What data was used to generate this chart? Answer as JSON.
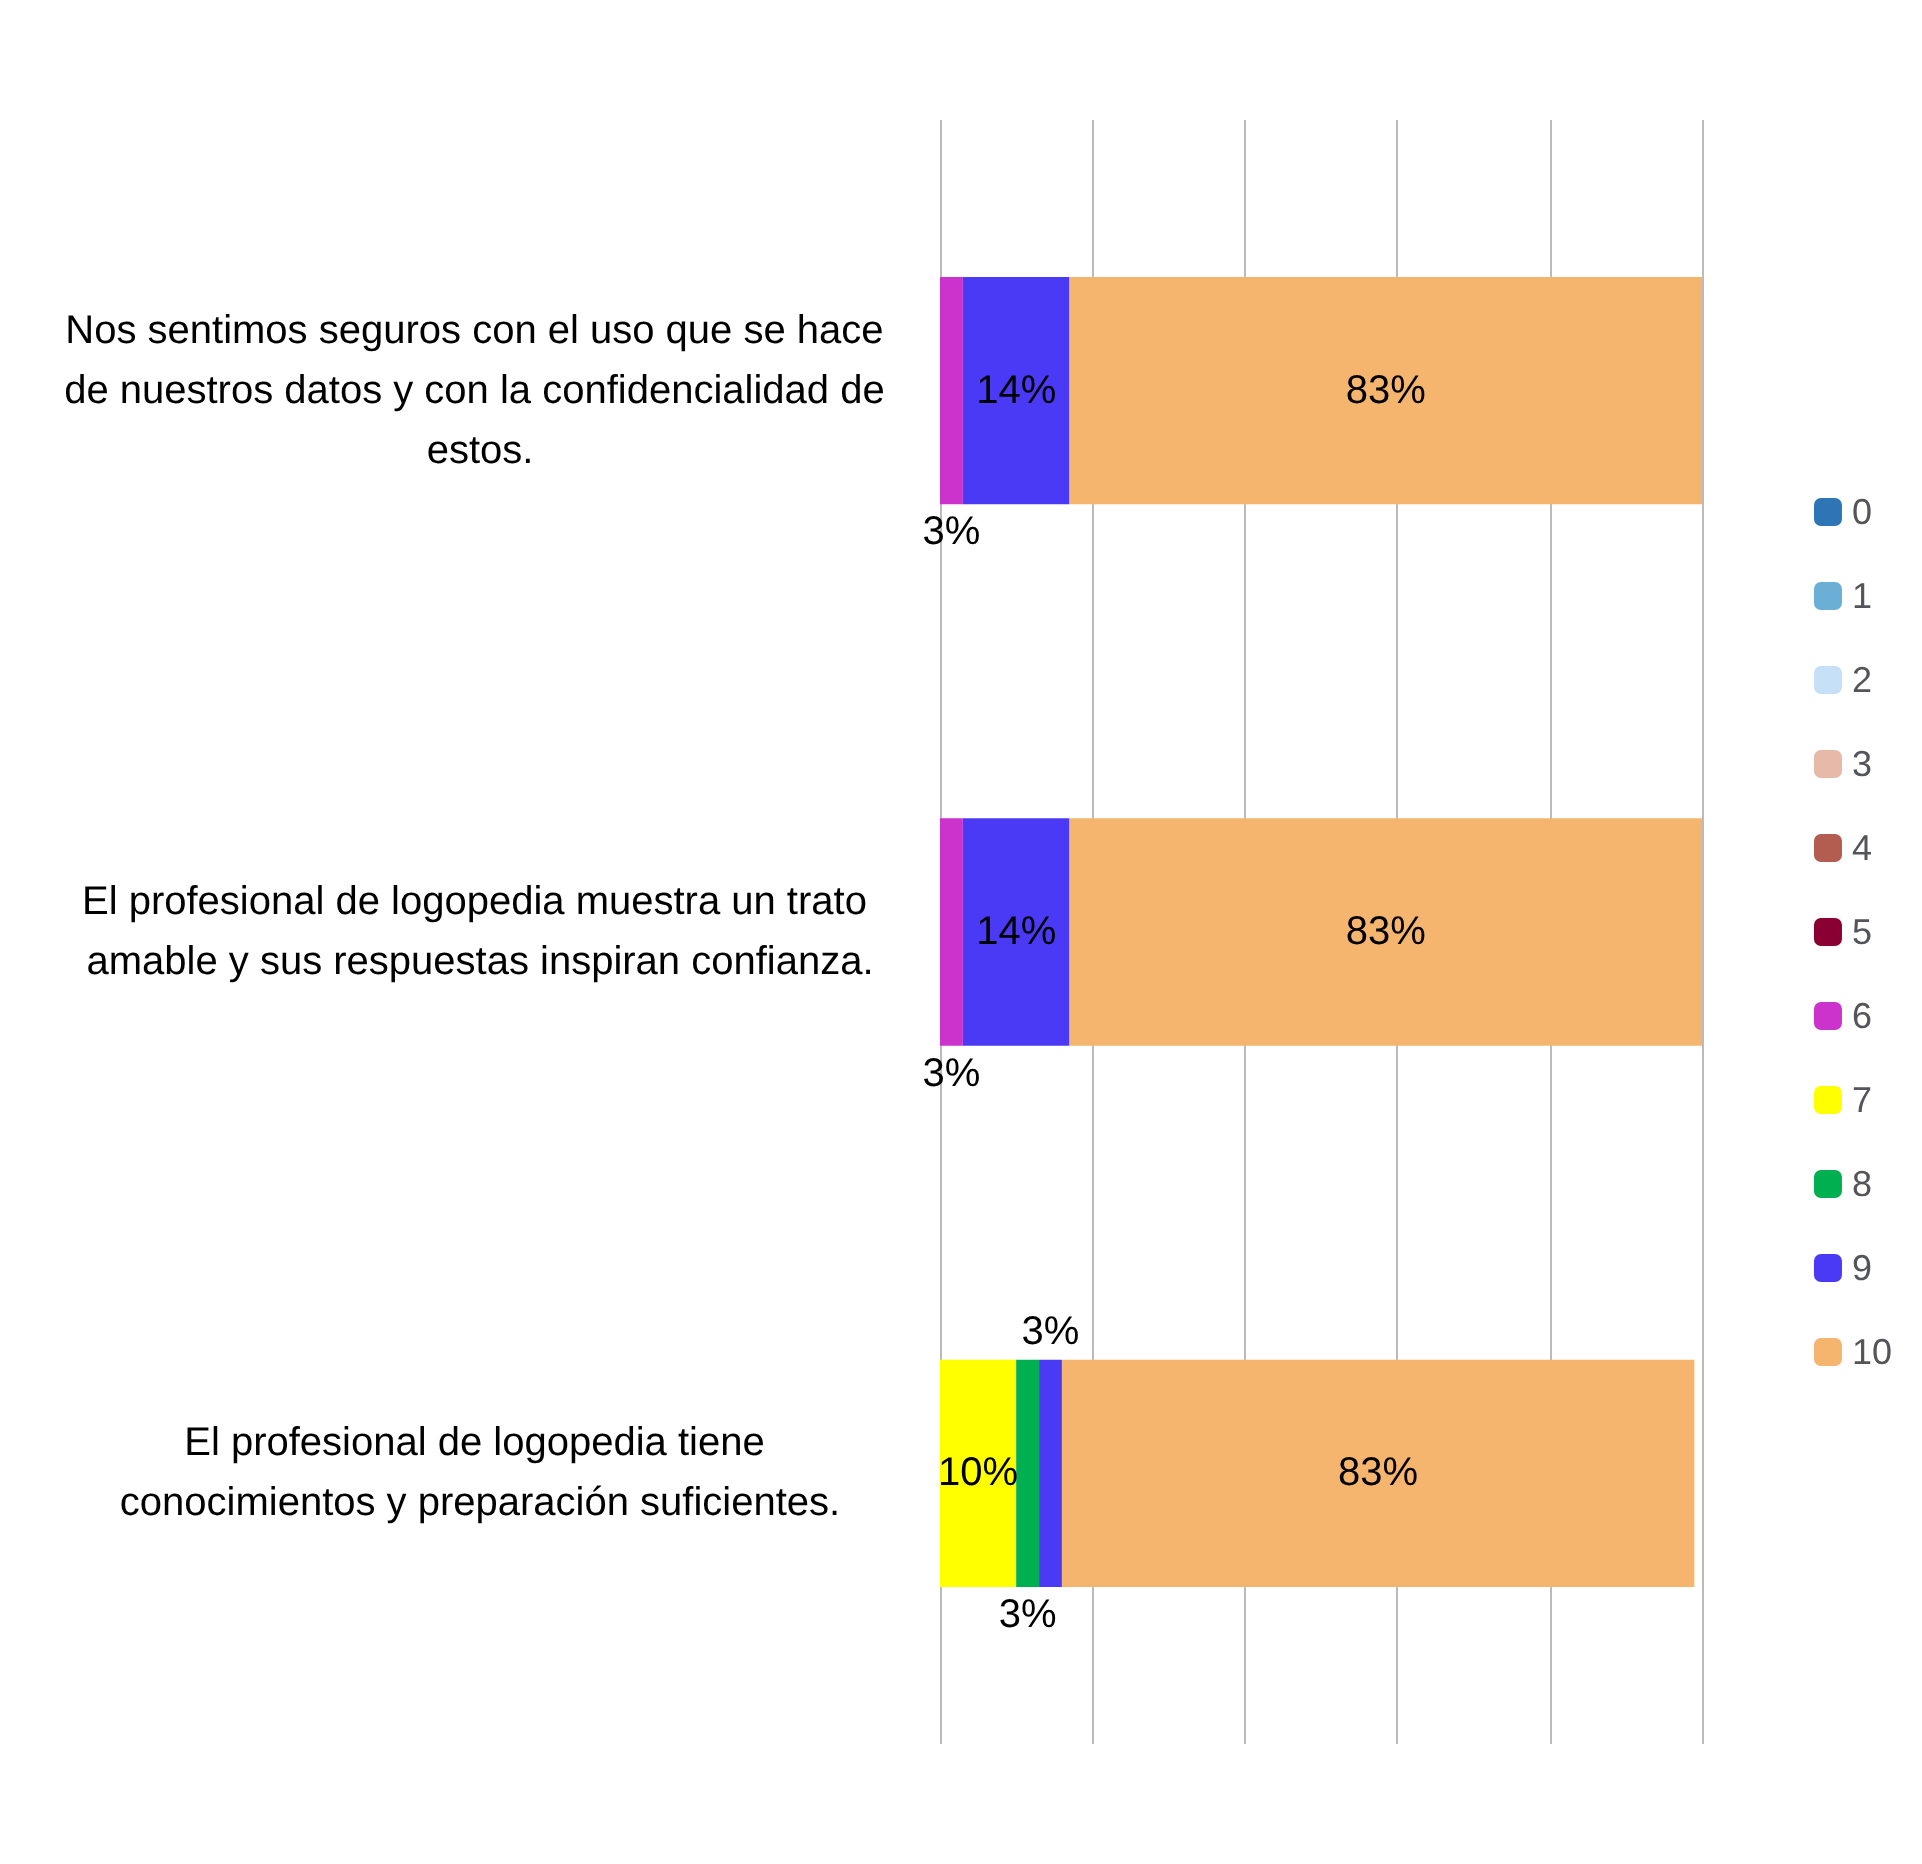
{
  "chart_data": {
    "type": "bar",
    "orientation": "horizontal",
    "stacked": true,
    "categories": [
      "Nos sentimos seguros con el uso que se hace de nuestros datos y con la confidencialidad de estos.",
      "El profesional de logopedia muestra un trato amable y sus respuestas inspiran confianza.",
      "El profesional de logopedia tiene conocimientos y preparación suficientes."
    ],
    "series": [
      {
        "name": "0",
        "color": "#2e75b6",
        "values": [
          null,
          null,
          null
        ]
      },
      {
        "name": "1",
        "color": "#6baed6",
        "values": [
          null,
          null,
          null
        ]
      },
      {
        "name": "2",
        "color": "#c6e0f8",
        "values": [
          null,
          null,
          null
        ]
      },
      {
        "name": "3",
        "color": "#e6b9a8",
        "values": [
          null,
          null,
          null
        ]
      },
      {
        "name": "4",
        "color": "#b35c50",
        "values": [
          null,
          null,
          null
        ]
      },
      {
        "name": "5",
        "color": "#8b0033",
        "values": [
          null,
          null,
          null
        ]
      },
      {
        "name": "6",
        "color": "#cc33cc",
        "values": [
          3,
          3,
          null
        ],
        "value_labels": [
          "3%",
          "3%",
          null
        ]
      },
      {
        "name": "7",
        "color": "#ffff00",
        "values": [
          null,
          null,
          10
        ],
        "value_labels": [
          null,
          null,
          "10%"
        ]
      },
      {
        "name": "8",
        "color": "#00b050",
        "values": [
          null,
          null,
          3
        ],
        "value_labels": [
          null,
          null,
          "3%"
        ]
      },
      {
        "name": "9",
        "color": "#4b3af5",
        "values": [
          14,
          14,
          3
        ],
        "value_labels": [
          "14%",
          "14%",
          "3%"
        ]
      },
      {
        "name": "10",
        "color": "#f5b56e",
        "values": [
          83,
          83,
          83
        ],
        "value_labels": [
          "83%",
          "83%",
          "83%"
        ]
      }
    ],
    "xlim": [
      0,
      100
    ],
    "xticks": [
      {
        "value": 0,
        "label": null
      },
      {
        "value": 20,
        "label": null
      },
      {
        "value": 40,
        "label": null
      },
      {
        "value": 60,
        "label": null
      },
      {
        "value": 80,
        "label": null
      },
      {
        "value": 100,
        "label": null
      }
    ],
    "grid": "x",
    "tick_labels": "y",
    "legend": "right"
  }
}
